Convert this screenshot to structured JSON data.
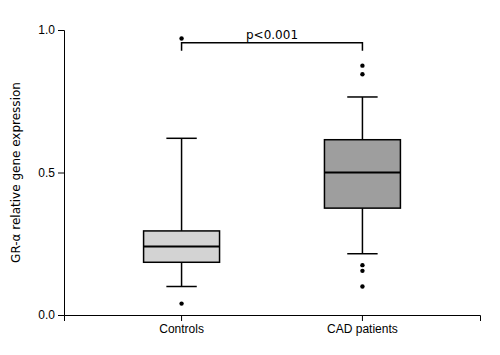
{
  "chart_data": {
    "type": "box",
    "categories": [
      "Controls",
      "CAD patients"
    ],
    "ylabel": "GR-α relative gene expression",
    "ylim": [
      0.0,
      1.0
    ],
    "yticks": [
      {
        "value": 0.0,
        "label": "0.0"
      },
      0.5,
      {
        "value": 1.0,
        "label": "1.0"
      }
    ],
    "colors": [
      "#d3d3d3",
      "#9e9e9e"
    ],
    "boxes": [
      {
        "median": 0.24,
        "q1": 0.185,
        "q3": 0.295,
        "whisker_low": 0.1,
        "whisker_high": 0.62,
        "fliers_high": [
          0.97
        ],
        "fliers_low": [
          0.04
        ]
      },
      {
        "median": 0.5,
        "q1": 0.375,
        "q3": 0.615,
        "whisker_low": 0.215,
        "whisker_high": 0.765,
        "fliers_high": [
          0.845,
          0.875
        ],
        "fliers_low": [
          0.175,
          0.155,
          0.1
        ]
      }
    ],
    "annotations": [
      {
        "text": "p<0.001",
        "y": 0.955
      }
    ]
  }
}
